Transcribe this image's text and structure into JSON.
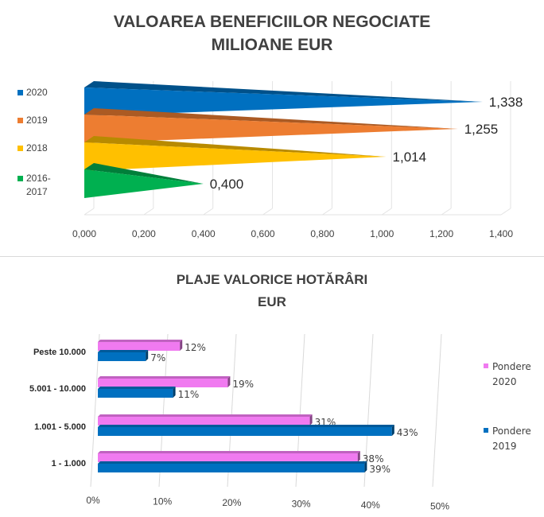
{
  "colors": {
    "y2020": "#0070C0",
    "y2019": "#ED7D31",
    "y2018": "#FFC000",
    "y2016": "#00B050",
    "pondere2020": "#F07AF0",
    "pondere2019": "#0070C0"
  },
  "chart_data": [
    {
      "type": "bar",
      "orientation": "horizontal",
      "style": "3d-cone",
      "title_lines": [
        "VALOAREA BENEFICIILOR NEGOCIATE",
        "MILIOANE EUR"
      ],
      "categories": [
        "2020",
        "2019",
        "2018",
        "2016-2017"
      ],
      "category_label_lines": [
        [
          "2020"
        ],
        [
          "2019"
        ],
        [
          "2018"
        ],
        [
          "2016-",
          "2017"
        ]
      ],
      "values": [
        1.338,
        1.255,
        1.014,
        0.4
      ],
      "value_labels": [
        "1,338",
        "1,255",
        "1,014",
        "0,400"
      ],
      "xlim": [
        0,
        1.4
      ],
      "xticks": [
        0,
        0.2,
        0.4,
        0.6,
        0.8,
        1.0,
        1.2,
        1.4
      ],
      "xtick_labels": [
        "0,000",
        "0,200",
        "0,400",
        "0,600",
        "0,800",
        "1,000",
        "1,200",
        "1,400"
      ],
      "legend": "left",
      "grid": true
    },
    {
      "type": "bar",
      "orientation": "horizontal",
      "style": "3d-clustered",
      "title_lines": [
        "PLAJE VALORICE HOTĂRÂRI",
        "EUR"
      ],
      "categories": [
        "Peste 10.000",
        "5.001 - 10.000",
        "1.001 - 5.000",
        "1 - 1.000"
      ],
      "series": [
        {
          "name_lines": [
            "Pondere",
            "2020"
          ],
          "values": [
            12,
            19,
            31,
            38
          ],
          "value_labels": [
            "12%",
            "19%",
            "31%",
            "38%"
          ]
        },
        {
          "name_lines": [
            "Pondere",
            "2019"
          ],
          "values": [
            7,
            11,
            43,
            39
          ],
          "value_labels": [
            "7%",
            "11%",
            "43%",
            "39%"
          ]
        }
      ],
      "xlim": [
        0,
        50
      ],
      "xticks": [
        0,
        10,
        20,
        30,
        40,
        50
      ],
      "xtick_labels": [
        "0%",
        "10%",
        "20%",
        "30%",
        "40%",
        "50%"
      ],
      "legend": "right",
      "grid": true
    }
  ]
}
